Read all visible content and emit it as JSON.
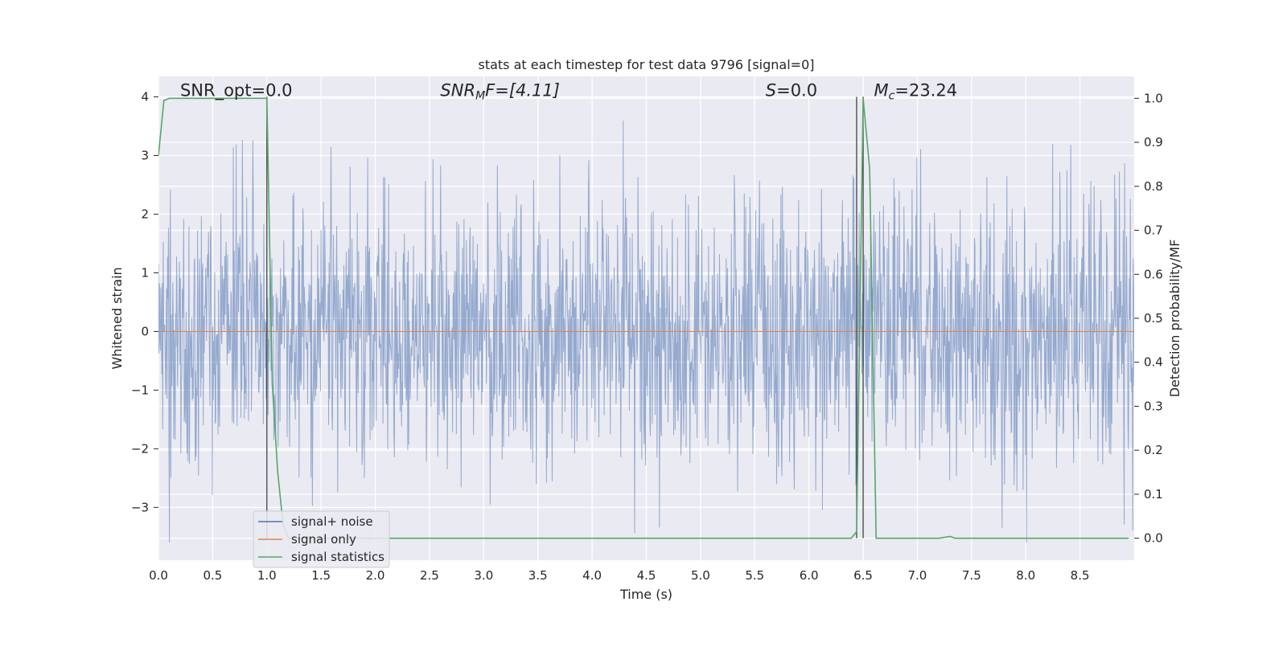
{
  "chart_data": {
    "type": "line",
    "title": "stats at each timestep for test data 9796 [signal=0]",
    "xlabel": "Time (s)",
    "ylabel": "Whitened strain",
    "ylabel_right": "Detection probability/MF",
    "xlim": [
      0.0,
      9.0
    ],
    "ylim": [
      -3.9,
      4.35
    ],
    "ylim_right": [
      -0.05,
      1.05
    ],
    "x_ticks": [
      0.0,
      0.5,
      1.0,
      1.5,
      2.0,
      2.5,
      3.0,
      3.5,
      4.0,
      4.5,
      5.0,
      5.5,
      6.0,
      6.5,
      7.0,
      7.5,
      8.0,
      8.5
    ],
    "x_tick_labels": [
      "0.0",
      "0.5",
      "1.0",
      "1.5",
      "2.0",
      "2.5",
      "3.0",
      "3.5",
      "4.0",
      "4.5",
      "5.0",
      "5.5",
      "6.0",
      "6.5",
      "7.0",
      "7.5",
      "8.0",
      "8.5"
    ],
    "y_ticks": [
      4,
      3,
      2,
      1,
      0,
      -1,
      -2,
      -3
    ],
    "y_tick_labels": [
      "4",
      "3",
      "2",
      "1",
      "0",
      "−1",
      "−2",
      "−3"
    ],
    "y_right_ticks": [
      1.0,
      0.9,
      0.8,
      0.7,
      0.6,
      0.5,
      0.4,
      0.3,
      0.2,
      0.1,
      0.0
    ],
    "y_right_tick_labels": [
      "1.0",
      "0.9",
      "0.8",
      "0.7",
      "0.6",
      "0.5",
      "0.4",
      "0.3",
      "0.2",
      "0.1",
      "0.0"
    ],
    "grid": true,
    "legend_position": "lower-left",
    "annotations": {
      "snr_opt": "SNR_opt=0.0",
      "snr_mf_sym": "SNR",
      "snr_mf_sub": "M",
      "snr_mf_rest": "F=[4.11]",
      "s_sym": "S",
      "s_rest": "=0.0",
      "mc_sym": "M",
      "mc_sub": "c",
      "mc_rest": "=23.24"
    },
    "vertical_lines_x": [
      1.0,
      6.44,
      6.5
    ],
    "series": [
      {
        "name": "signal+ noise",
        "color": "#4c72b0",
        "style": "noise",
        "amplitude_range": [
          -3.6,
          4.0
        ],
        "samples": 2048
      },
      {
        "name": "signal only",
        "color": "#dd8452",
        "x": [
          0.0,
          9.0
        ],
        "y": [
          0.0,
          0.0
        ]
      },
      {
        "name": "signal statistics",
        "color": "#55a868",
        "axis": "right",
        "x": [
          0.0,
          0.05,
          0.1,
          0.15,
          0.2,
          0.5,
          0.75,
          0.95,
          1.0,
          1.05,
          1.1,
          1.15,
          1.2,
          2.0,
          3.0,
          4.0,
          5.0,
          6.0,
          6.39,
          6.44,
          6.5,
          6.56,
          6.62,
          7.0,
          7.2,
          7.3,
          7.35,
          8.0,
          8.95
        ],
        "y": [
          0.87,
          0.995,
          1.0,
          1.0,
          1.0,
          1.0,
          1.0,
          1.0,
          1.0,
          0.35,
          0.15,
          0.03,
          0.0,
          0.0,
          0.0,
          0.0,
          0.0,
          0.0,
          0.0,
          0.015,
          1.0,
          0.84,
          0.0,
          0.0,
          0.0,
          0.004,
          0.0,
          0.0,
          0.0
        ]
      }
    ]
  }
}
